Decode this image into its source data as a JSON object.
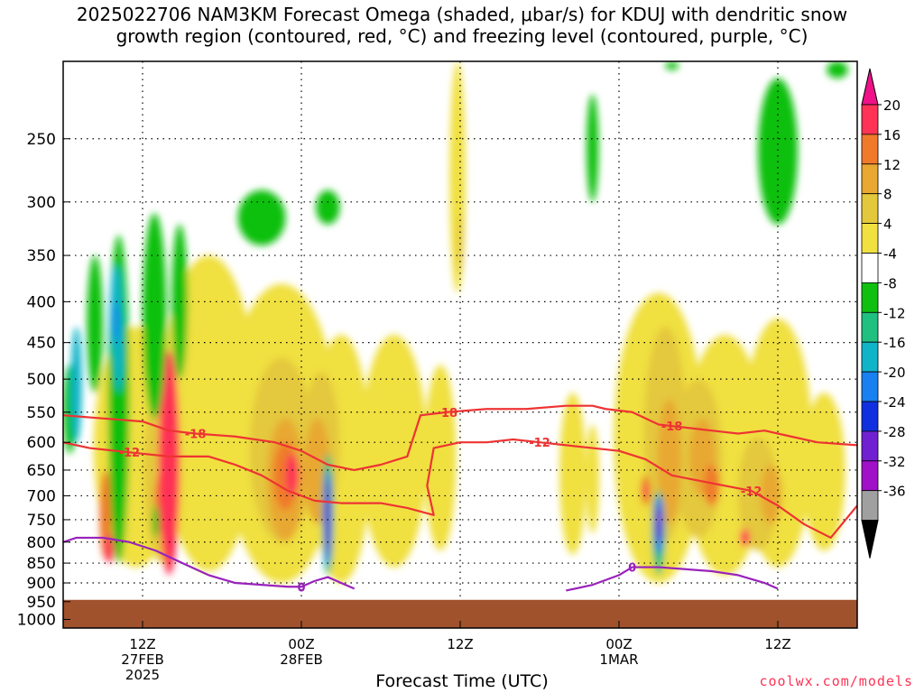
{
  "title": {
    "line1": "2025022706 NAM3KM Forecast Omega (shaded, μbar/s) for KDUJ with dendritic snow",
    "line2": "growth region (contoured, red, °C) and freezing level (contoured, purple, °C)"
  },
  "credit": "coolwx.com/models",
  "chart_data": {
    "type": "heatmap",
    "xlabel": "Forecast Time (UTC)",
    "ylabel": "",
    "x_ticks": [
      {
        "hour": 6,
        "label": "12Z",
        "sub1": "27FEB",
        "sub2": "2025"
      },
      {
        "hour": 18,
        "label": "00Z",
        "sub1": "28FEB",
        "sub2": ""
      },
      {
        "hour": 30,
        "label": "12Z",
        "sub1": "",
        "sub2": ""
      },
      {
        "hour": 42,
        "label": "00Z",
        "sub1": "1MAR",
        "sub2": ""
      },
      {
        "hour": 54,
        "label": "12Z",
        "sub1": "",
        "sub2": ""
      }
    ],
    "xlim_hours": [
      0,
      60
    ],
    "y_ticks": [
      250,
      300,
      350,
      400,
      450,
      500,
      550,
      600,
      650,
      700,
      750,
      800,
      850,
      900,
      950,
      1000
    ],
    "ylim_hPa": [
      200,
      1025
    ],
    "y_scale": "log-pressure",
    "ground_level_hPa": 945,
    "colorbar": {
      "labels": [
        "20",
        "16",
        "12",
        "8",
        "4",
        "-4",
        "-8",
        "-12",
        "-16",
        "-20",
        "-24",
        "-28",
        "-32",
        "-36"
      ],
      "bins": [
        {
          "color": "#ff3355"
        },
        {
          "color": "#f07a2a"
        },
        {
          "color": "#e8a832"
        },
        {
          "color": "#e4c83c"
        },
        {
          "color": "#f0e040"
        },
        {
          "color": "#ffffff"
        },
        {
          "color": "#10c010"
        },
        {
          "color": "#20c080"
        },
        {
          "color": "#10b4c8"
        },
        {
          "color": "#1880f0"
        },
        {
          "color": "#1030e0"
        },
        {
          "color": "#7020d0"
        },
        {
          "color": "#a010c8"
        },
        {
          "color": "#a0a0a0"
        }
      ],
      "top_arrow_color": "#ee1188",
      "bottom_arrow_color": "#000000"
    },
    "contours": [
      {
        "label": "-18",
        "color": "#ee3333",
        "points": [
          [
            0,
            555
          ],
          [
            3,
            560
          ],
          [
            6,
            565
          ],
          [
            8,
            580
          ],
          [
            10,
            585
          ],
          [
            13,
            590
          ],
          [
            16,
            600
          ],
          [
            18,
            615
          ],
          [
            20,
            640
          ],
          [
            22,
            650
          ],
          [
            24,
            640
          ],
          [
            26,
            625
          ],
          [
            27,
            555
          ],
          [
            29,
            550
          ],
          [
            32,
            545
          ],
          [
            35,
            545
          ],
          [
            38,
            540
          ],
          [
            40,
            540
          ],
          [
            41,
            545
          ],
          [
            43,
            550
          ],
          [
            45,
            570
          ],
          [
            47,
            575
          ],
          [
            49,
            580
          ],
          [
            51,
            585
          ],
          [
            53,
            580
          ],
          [
            55,
            590
          ],
          [
            57,
            600
          ],
          [
            60,
            605
          ]
        ],
        "label_hours": [
          10,
          29,
          46
        ]
      },
      {
        "label": "-12",
        "color": "#ee3333",
        "points": [
          [
            0,
            600
          ],
          [
            2,
            610
          ],
          [
            4,
            615
          ],
          [
            6,
            620
          ],
          [
            8,
            625
          ],
          [
            11,
            625
          ],
          [
            13,
            640
          ],
          [
            15,
            660
          ],
          [
            17,
            690
          ],
          [
            19,
            710
          ],
          [
            21,
            715
          ],
          [
            24,
            715
          ],
          [
            26,
            725
          ],
          [
            28,
            740
          ],
          [
            27.5,
            680
          ],
          [
            28,
            610
          ],
          [
            30,
            600
          ],
          [
            32,
            600
          ],
          [
            34,
            595
          ],
          [
            36,
            600
          ],
          [
            38,
            605
          ],
          [
            40,
            610
          ],
          [
            42,
            615
          ],
          [
            44,
            630
          ],
          [
            46,
            660
          ],
          [
            48,
            670
          ],
          [
            50,
            680
          ],
          [
            52,
            690
          ],
          [
            54,
            720
          ],
          [
            56,
            760
          ],
          [
            58,
            790
          ],
          [
            60,
            720
          ]
        ],
        "label_hours": [
          5,
          36,
          52
        ]
      },
      {
        "label": "0",
        "color": "#9922bb",
        "points": [
          [
            0,
            800
          ],
          [
            1,
            790
          ],
          [
            3,
            790
          ],
          [
            5,
            800
          ],
          [
            7,
            820
          ],
          [
            9,
            850
          ],
          [
            11,
            880
          ],
          [
            13,
            900
          ],
          [
            15,
            905
          ],
          [
            17,
            910
          ],
          [
            18,
            910
          ],
          [
            19,
            895
          ],
          [
            20,
            885
          ],
          [
            21,
            900
          ],
          [
            22,
            915
          ]
        ],
        "label_hours": [
          18
        ]
      },
      {
        "label": "0",
        "color": "#9922bb",
        "points": [
          [
            38,
            920
          ],
          [
            40,
            905
          ],
          [
            42,
            880
          ],
          [
            43,
            860
          ],
          [
            45,
            860
          ],
          [
            47,
            865
          ],
          [
            49,
            870
          ],
          [
            51,
            880
          ],
          [
            53,
            900
          ],
          [
            54,
            915
          ]
        ],
        "label_hours": [
          43
        ]
      }
    ]
  }
}
